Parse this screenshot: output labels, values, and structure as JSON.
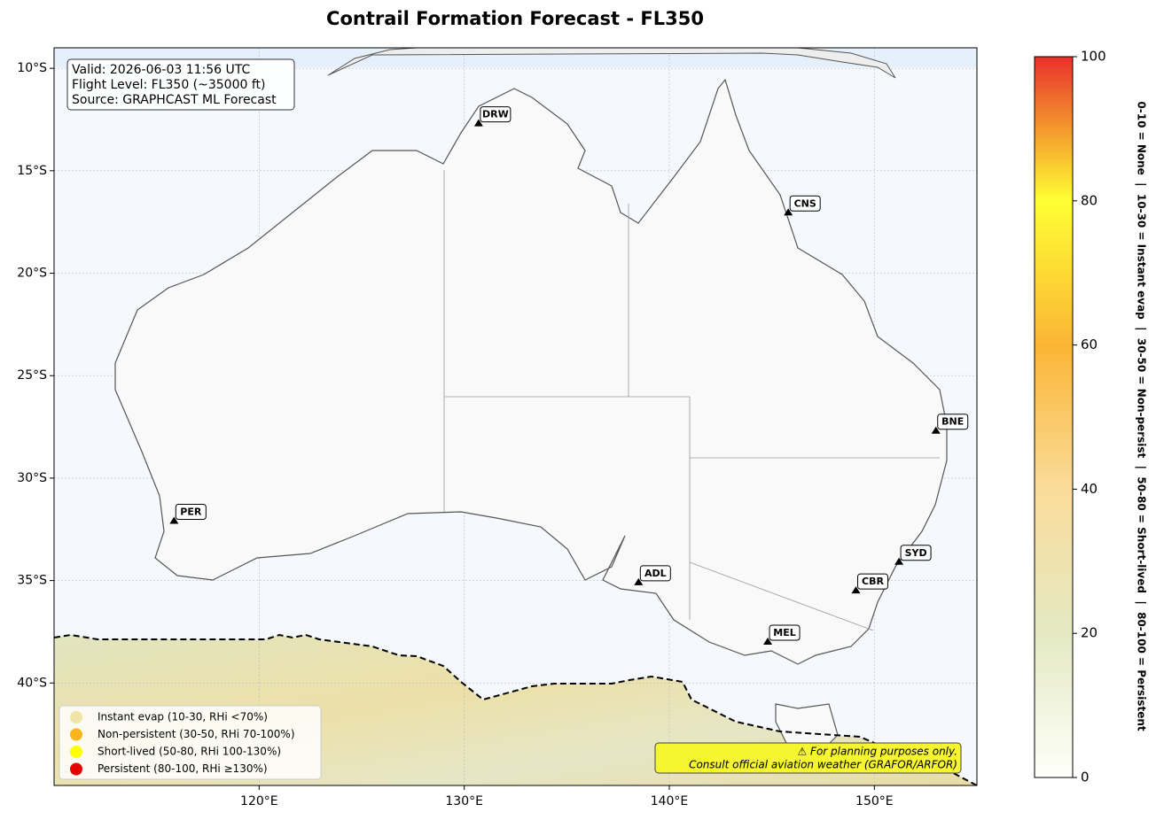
{
  "title": "Contrail Formation Forecast - FL350",
  "map": {
    "type": "map",
    "xlim": [
      110,
      155
    ],
    "ylim": [
      -45,
      -9
    ],
    "xticks": [
      {
        "value": 120,
        "label": "120°E"
      },
      {
        "value": 130,
        "label": "130°E"
      },
      {
        "value": 140,
        "label": "140°E"
      },
      {
        "value": 150,
        "label": "150°E"
      }
    ],
    "yticks": [
      {
        "value": -10,
        "label": "10°S"
      },
      {
        "value": -15,
        "label": "15°S"
      },
      {
        "value": -20,
        "label": "20°S"
      },
      {
        "value": -25,
        "label": "25°S"
      },
      {
        "value": -30,
        "label": "30°S"
      },
      {
        "value": -35,
        "label": "35°S"
      },
      {
        "value": -40,
        "label": "40°S"
      }
    ],
    "grid": true,
    "stations": [
      {
        "name": "DRW",
        "lon": 130.7,
        "lat": -12.7
      },
      {
        "name": "CNS",
        "lon": 145.8,
        "lat": -17.05
      },
      {
        "name": "BNE",
        "lon": 153.0,
        "lat": -27.7
      },
      {
        "name": "PER",
        "lon": 115.85,
        "lat": -32.1
      },
      {
        "name": "ADL",
        "lon": 138.5,
        "lat": -35.1
      },
      {
        "name": "SYD",
        "lon": 151.2,
        "lat": -34.1
      },
      {
        "name": "CBR",
        "lon": 149.1,
        "lat": -35.5
      },
      {
        "name": "MEL",
        "lon": 144.8,
        "lat": -38.0
      }
    ]
  },
  "info_box": [
    "Valid: 2026-06-03 11:56 UTC",
    "Flight Level: FL350 (~35000 ft)",
    "Source: GRAPHCAST ML Forecast"
  ],
  "legend": [
    {
      "name": "Instant evap (10-30, RHi <70%)",
      "color": "#f0e4a8"
    },
    {
      "name": "Non-persistent (30-50, RHi 70-100%)",
      "color": "#fbb41b"
    },
    {
      "name": "Short-lived (50-80, RHi 100-130%)",
      "color": "#ffff00"
    },
    {
      "name": "Persistent (80-100, RHi ≥130%)",
      "color": "#e60000"
    }
  ],
  "disclaimer": [
    "⚠ For planning purposes only.",
    "Consult official aviation weather (GRAFOR/ARFOR)"
  ],
  "colorbar": {
    "label": "0-10 = None  |  10-30 = Instant evap  |  30-50 = Non-persist  |  50-80 = Short-lived  |  80-100 = Persistent",
    "clim": [
      0,
      100
    ],
    "ticks": [
      0,
      20,
      40,
      60,
      80,
      100
    ],
    "colors": [
      "#fffffa",
      "#e4e9c3",
      "#fadc9a",
      "#fbb535",
      "#ffff33",
      "#e8312a"
    ]
  }
}
